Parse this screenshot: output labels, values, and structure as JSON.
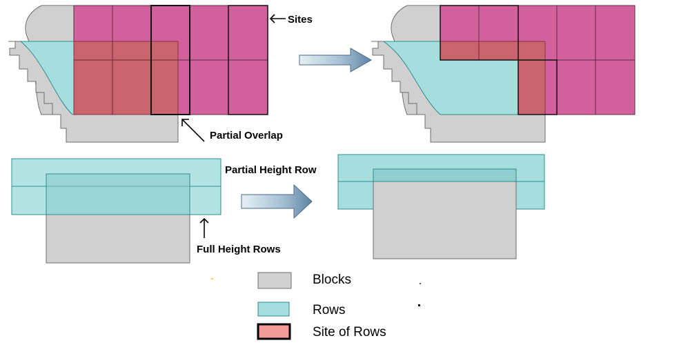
{
  "annotations": {
    "sites": "Sites",
    "partial_overlap": "Partial Overlap",
    "partial_height_row": "Partial Height Row",
    "full_height_rows": "Full Height Rows"
  },
  "legend": {
    "blocks": "Blocks",
    "rows": "Rows",
    "site_of_rows": "Site of Rows"
  },
  "colors": {
    "block_fill": "#d0d0d0",
    "block_stroke": "#6e6e6e",
    "row_fill": "#a6dede",
    "row_stroke": "#2f8c8c",
    "site_fill": "#d2609c",
    "overlap_fill": "#c9646e",
    "site_of_rows_legend_fill": "#f2999a",
    "arrow_fill": "#5e82a3"
  }
}
